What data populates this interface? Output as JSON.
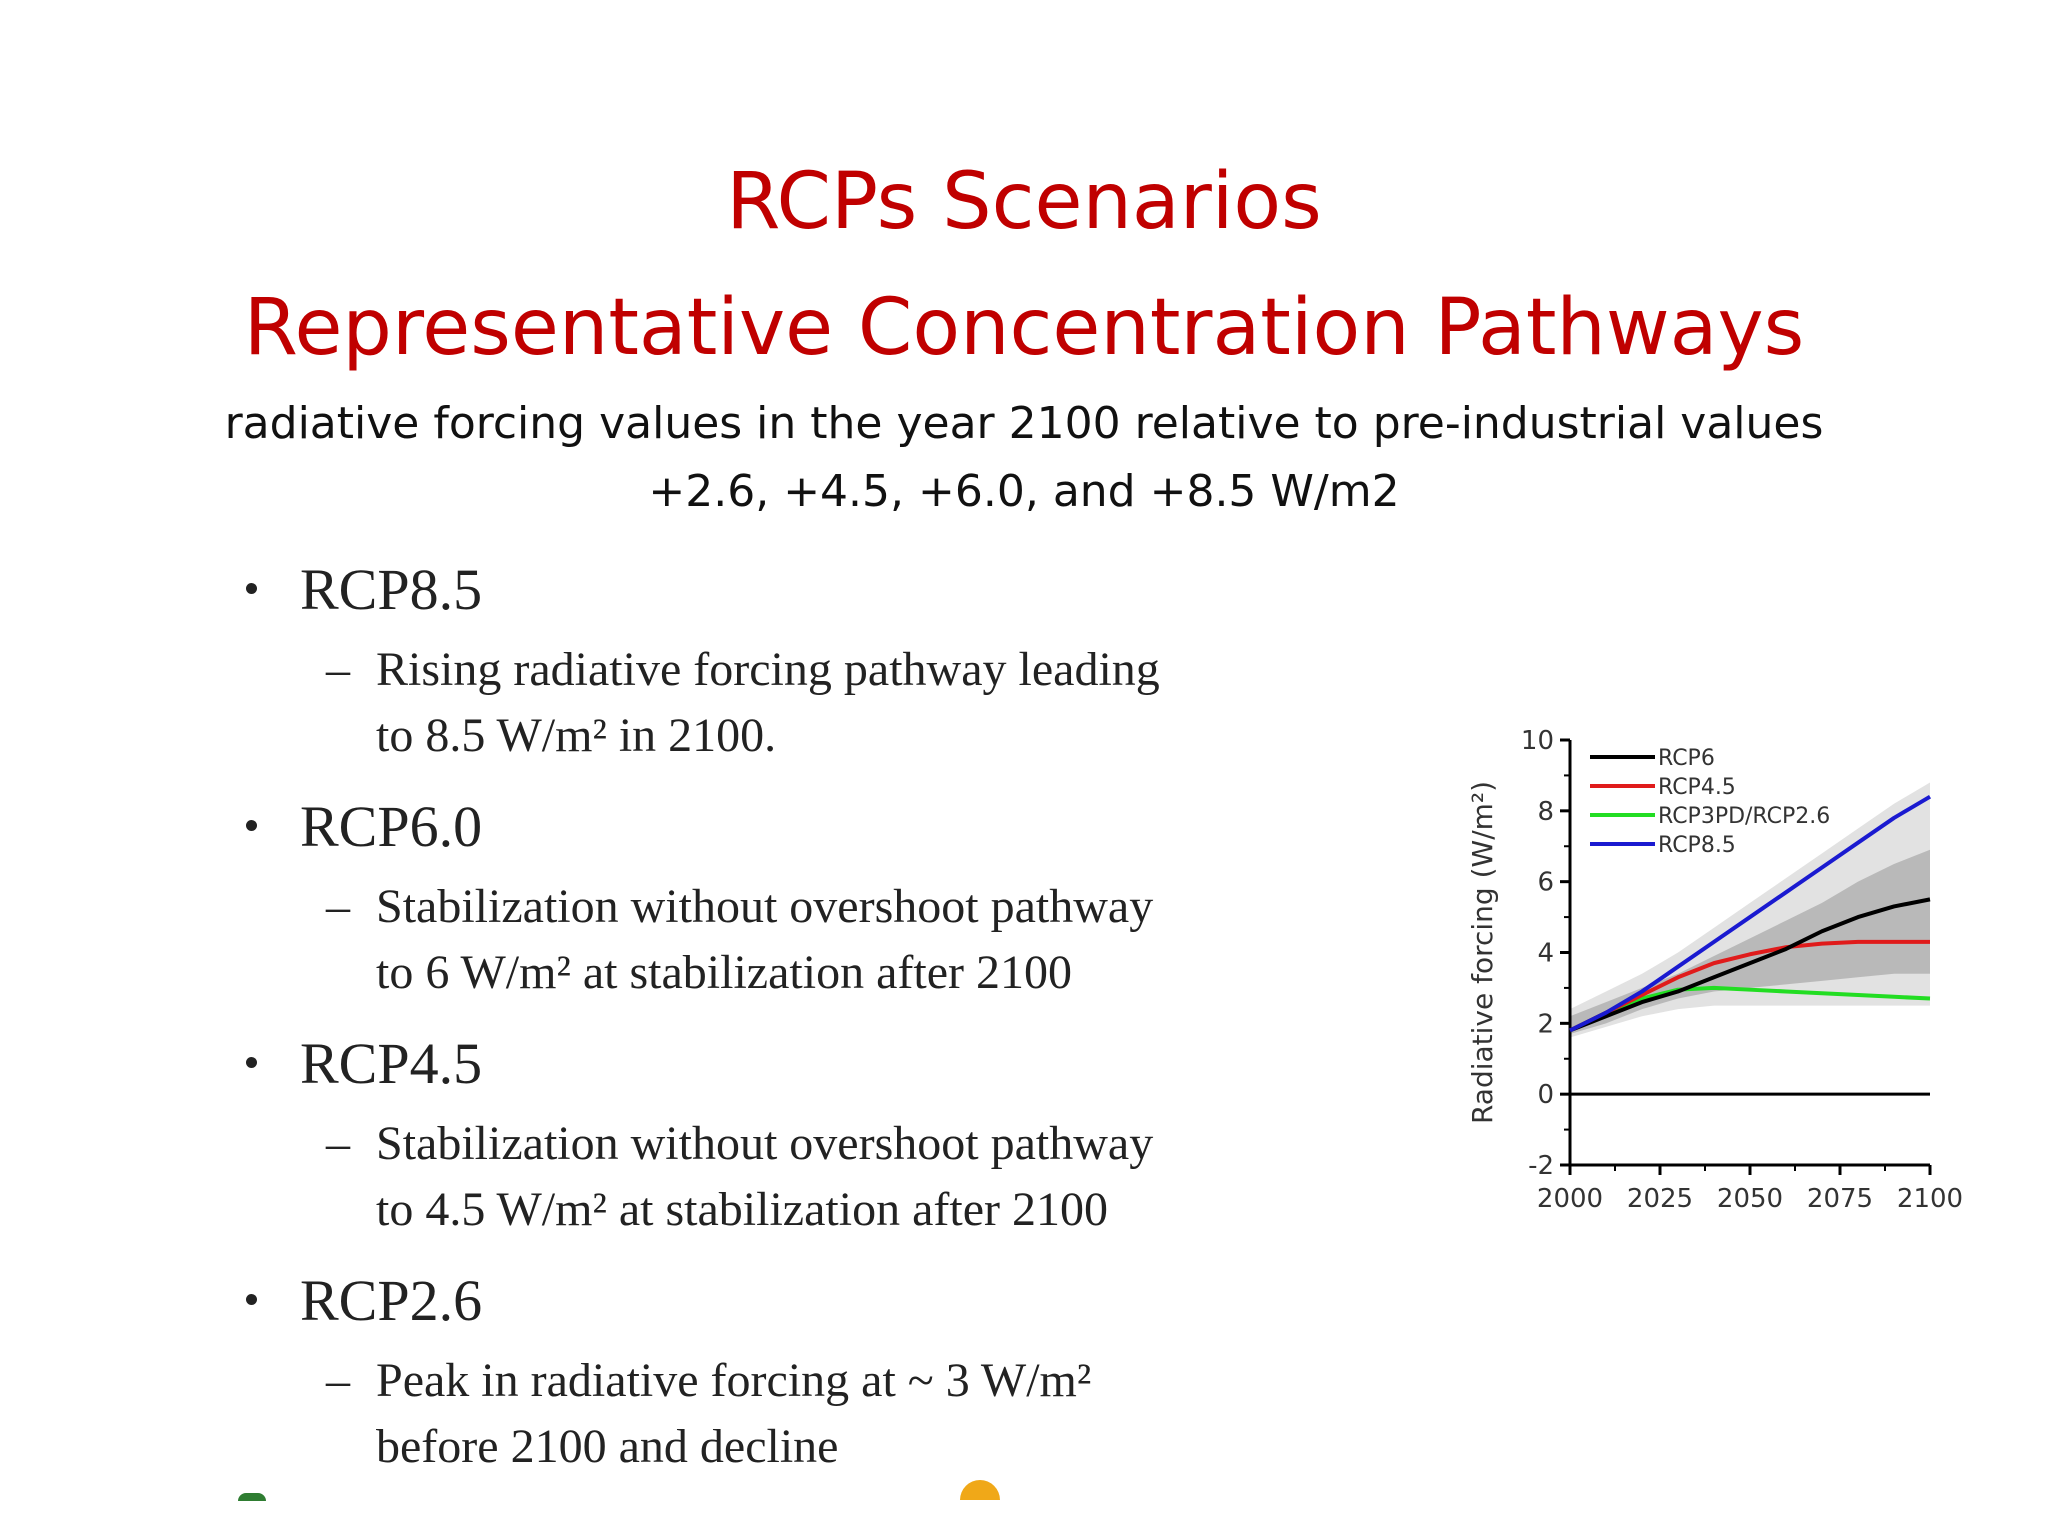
{
  "slide": {
    "title_line1": "RCPs Scenarios",
    "title_line2": "Representative Concentration Pathways",
    "subtitle_line1": "radiative forcing values in the year 2100 relative to pre-industrial values",
    "subtitle_line2": "+2.6, +4.5, +6.0, and +8.5 W/m2"
  },
  "bullets": [
    {
      "heading": "RCP8.5",
      "line1": "Rising radiative forcing pathway leading",
      "line2": "to 8.5 W/m² in 2100."
    },
    {
      "heading": "RCP6.0",
      "line1": "Stabilization without overshoot pathway",
      "line2": "to 6 W/m² at stabilization after 2100"
    },
    {
      "heading": "RCP4.5",
      "line1": "Stabilization without overshoot pathway",
      "line2": "to 4.5 W/m² at stabilization after 2100"
    },
    {
      "heading": "RCP2.6",
      "line1": "Peak in radiative forcing at ~ 3 W/m²",
      "line2": "before 2100 and decline"
    }
  ],
  "dash_glyph": "–",
  "chart_data": {
    "type": "line",
    "title": "",
    "xlabel": "",
    "ylabel": "Radiative forcing (W/m²)",
    "xlim": [
      2000,
      2100
    ],
    "ylim": [
      -2,
      10
    ],
    "xticks": [
      "2000",
      "2025",
      "2050",
      "2075",
      "2100"
    ],
    "yticks": [
      "-2",
      "0",
      "2",
      "4",
      "6",
      "8",
      "10"
    ],
    "legend_position": "top-left",
    "grid": false,
    "baseline_y": 0,
    "x": [
      2000,
      2010,
      2020,
      2030,
      2040,
      2050,
      2060,
      2070,
      2080,
      2090,
      2100
    ],
    "series": [
      {
        "name": "RCP6",
        "color": "#000000",
        "values": [
          1.8,
          2.2,
          2.6,
          2.9,
          3.3,
          3.7,
          4.1,
          4.6,
          5.0,
          5.3,
          5.5
        ]
      },
      {
        "name": "RCP4.5",
        "color": "#e01b1b",
        "values": [
          1.8,
          2.3,
          2.8,
          3.3,
          3.7,
          3.95,
          4.15,
          4.25,
          4.3,
          4.3,
          4.3
        ]
      },
      {
        "name": "RCP3PD/RCP2.6",
        "color": "#22dd22",
        "values": [
          1.8,
          2.3,
          2.7,
          2.95,
          3.0,
          2.95,
          2.9,
          2.85,
          2.8,
          2.75,
          2.7
        ]
      },
      {
        "name": "RCP8.5",
        "color": "#1a1ad0",
        "values": [
          1.8,
          2.3,
          2.9,
          3.6,
          4.3,
          5.0,
          5.7,
          6.4,
          7.1,
          7.8,
          8.4
        ]
      }
    ],
    "uncertainty_bands": [
      {
        "color": "#e2e2e2",
        "lower": [
          1.6,
          1.9,
          2.2,
          2.4,
          2.5,
          2.5,
          2.5,
          2.5,
          2.5,
          2.5,
          2.5
        ],
        "upper": [
          2.4,
          2.9,
          3.4,
          4.0,
          4.7,
          5.4,
          6.1,
          6.8,
          7.5,
          8.2,
          8.8
        ]
      },
      {
        "color": "#b9b9b9",
        "lower": [
          1.7,
          2.0,
          2.4,
          2.7,
          2.9,
          3.0,
          3.1,
          3.2,
          3.3,
          3.4,
          3.4
        ],
        "upper": [
          2.2,
          2.6,
          3.0,
          3.4,
          3.9,
          4.4,
          4.9,
          5.4,
          6.0,
          6.5,
          6.9
        ]
      }
    ]
  }
}
